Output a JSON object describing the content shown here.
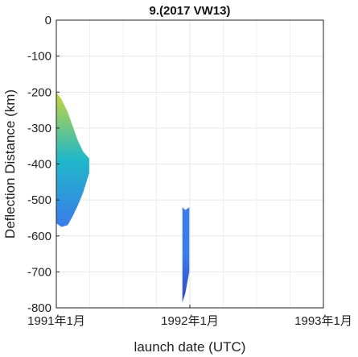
{
  "chart_data": {
    "type": "area",
    "title": "9.(2017 VW13)",
    "xlabel": "launch date (UTC)",
    "ylabel": "Deflection Distance (km)",
    "x_ticks": [
      "1991年1月",
      "1992年1月",
      "1993年1月"
    ],
    "y_ticks": [
      "0",
      "-100",
      "-200",
      "-300",
      "-400",
      "-500",
      "-600",
      "-700",
      "-800"
    ],
    "xlim": [
      "1991-01-01",
      "1993-01-01"
    ],
    "ylim": [
      -800,
      0
    ],
    "grid": true,
    "colormap": "parula",
    "series": [
      {
        "x": [
          "1991-01-01",
          "1991-01-15",
          "1991-02-01",
          "1991-02-15",
          "1991-03-01",
          "1991-03-15",
          "1991-04-01"
        ],
        "upper": [
          -200,
          -220,
          -255,
          -295,
          -335,
          -365,
          -385
        ],
        "lower": [
          -565,
          -575,
          -570,
          -545,
          -515,
          -480,
          -425
        ],
        "color_top": "#c9d63b",
        "color_mid": "#1fb8c9",
        "color_bottom": "#3b7bea"
      },
      {
        "x": [
          "1991-12-12",
          "1991-12-20",
          "1991-12-31"
        ],
        "upper": [
          -520,
          -528,
          -520
        ],
        "lower": [
          -785,
          -760,
          -700
        ],
        "color_top": "#3b7bea",
        "color_mid": "#3b7bea",
        "color_bottom": "#3148c4"
      }
    ]
  }
}
